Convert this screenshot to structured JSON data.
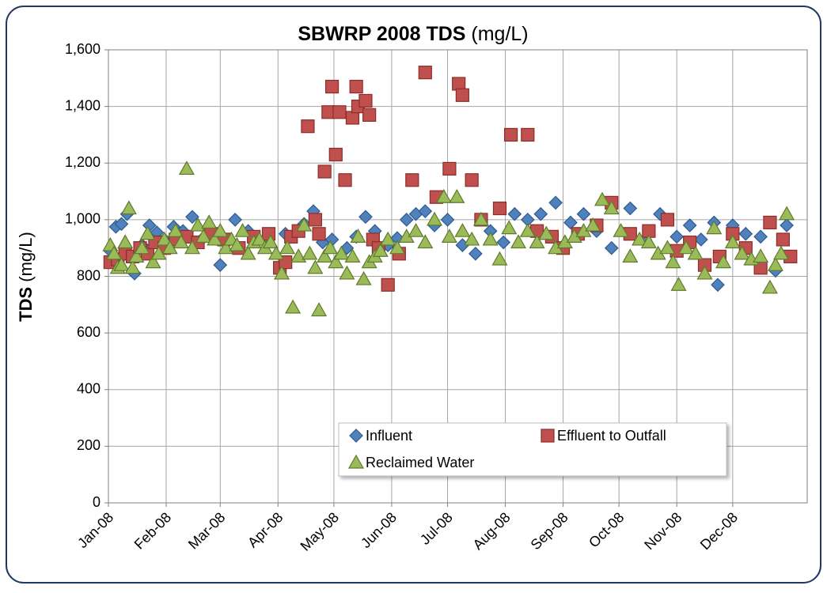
{
  "chart_data": {
    "type": "scatter",
    "title": "SBWRP 2008 TDS",
    "title_unit": "(mg/L)",
    "ylabel": "TDS",
    "ylabel_unit": "(mg/L)",
    "grid": true,
    "legend": "bottom",
    "xlim": [
      0,
      375
    ],
    "xticks": [
      {
        "value": 0,
        "label": "Jan-08"
      },
      {
        "value": 31,
        "label": "Feb-08"
      },
      {
        "value": 60,
        "label": "Mar-08"
      },
      {
        "value": 91,
        "label": "Apr-08"
      },
      {
        "value": 121,
        "label": "May-08"
      },
      {
        "value": 152,
        "label": "Jun-08"
      },
      {
        "value": 182,
        "label": "Jul-08"
      },
      {
        "value": 213,
        "label": "Aug-08"
      },
      {
        "value": 244,
        "label": "Sep-08"
      },
      {
        "value": 274,
        "label": "Oct-08"
      },
      {
        "value": 305,
        "label": "Nov-08"
      },
      {
        "value": 335,
        "label": "Dec-08"
      }
    ],
    "ylim": [
      0,
      1600
    ],
    "yticks": [
      0,
      200,
      400,
      600,
      800,
      {
        "value": 1000,
        "label": "1,000"
      },
      {
        "value": 1200,
        "label": "1,200"
      },
      {
        "value": 1400,
        "label": "1,400"
      },
      {
        "value": 1600,
        "label": "1,600"
      }
    ],
    "series": [
      {
        "name": "Influent",
        "color": "#4f81bd",
        "stroke": "#2c5a8f",
        "marker": "diamond",
        "x": [
          1,
          4,
          7,
          10,
          14,
          18,
          22,
          26,
          30,
          35,
          40,
          45,
          50,
          55,
          60,
          68,
          75,
          85,
          95,
          105,
          110,
          115,
          120,
          128,
          133,
          138,
          143,
          150,
          155,
          160,
          165,
          170,
          175,
          182,
          190,
          197,
          205,
          212,
          218,
          225,
          232,
          240,
          248,
          255,
          262,
          270,
          280,
          288,
          296,
          305,
          312,
          318,
          325,
          327,
          335,
          342,
          350,
          358,
          364
        ],
        "values": [
          890,
          975,
          985,
          1020,
          810,
          910,
          980,
          955,
          930,
          975,
          960,
          1010,
          930,
          960,
          840,
          1000,
          960,
          930,
          950,
          985,
          1030,
          920,
          930,
          900,
          940,
          1010,
          960,
          910,
          935,
          1000,
          1020,
          1030,
          980,
          1000,
          910,
          880,
          960,
          920,
          1020,
          1000,
          1020,
          1060,
          990,
          1020,
          960,
          900,
          1040,
          930,
          1020,
          940,
          980,
          930,
          990,
          770,
          980,
          950,
          940,
          820,
          980
        ]
      },
      {
        "name": "Effluent to Outfall",
        "color": "#c0504d",
        "stroke": "#8c2d2a",
        "marker": "square",
        "x": [
          1,
          5,
          9,
          13,
          17,
          21,
          25,
          30,
          36,
          42,
          48,
          55,
          62,
          70,
          78,
          86,
          92,
          95,
          98,
          102,
          107,
          111,
          113,
          116,
          118,
          120,
          122,
          124,
          127,
          131,
          133,
          134,
          138,
          140,
          142,
          145,
          150,
          156,
          163,
          170,
          176,
          183,
          188,
          190,
          195,
          200,
          210,
          216,
          225,
          230,
          238,
          244,
          252,
          262,
          270,
          280,
          290,
          300,
          305,
          312,
          320,
          328,
          335,
          342,
          350,
          355,
          362,
          366
        ],
        "values": [
          850,
          860,
          880,
          870,
          900,
          880,
          920,
          900,
          930,
          940,
          920,
          950,
          930,
          900,
          940,
          950,
          830,
          850,
          940,
          960,
          1330,
          1000,
          950,
          1170,
          1380,
          1470,
          1230,
          1380,
          1140,
          1360,
          1470,
          1400,
          1420,
          1370,
          930,
          900,
          770,
          880,
          1140,
          1520,
          1080,
          1180,
          1480,
          1440,
          1140,
          1000,
          1040,
          1300,
          1300,
          960,
          940,
          900,
          950,
          980,
          1060,
          950,
          960,
          1000,
          890,
          920,
          840,
          870,
          950,
          900,
          830,
          990,
          930,
          870
        ]
      },
      {
        "name": "Reclaimed Water",
        "color": "#9bbb59",
        "stroke": "#5f7a2c",
        "marker": "triangle",
        "x": [
          1,
          3,
          5,
          7,
          9,
          11,
          13,
          15,
          18,
          21,
          24,
          27,
          30,
          33,
          36,
          39,
          42,
          45,
          48,
          51,
          54,
          57,
          60,
          63,
          66,
          69,
          72,
          75,
          78,
          81,
          84,
          87,
          90,
          93,
          96,
          99,
          102,
          105,
          108,
          111,
          113,
          116,
          119,
          122,
          125,
          128,
          131,
          134,
          137,
          140,
          143,
          146,
          150,
          155,
          160,
          165,
          170,
          175,
          180,
          183,
          187,
          190,
          195,
          200,
          205,
          210,
          215,
          220,
          225,
          230,
          235,
          240,
          245,
          250,
          255,
          260,
          265,
          270,
          275,
          280,
          285,
          290,
          295,
          300,
          303,
          306,
          310,
          315,
          320,
          325,
          330,
          335,
          340,
          345,
          350,
          355,
          358,
          361,
          364
        ],
        "values": [
          910,
          880,
          830,
          840,
          920,
          1040,
          830,
          870,
          900,
          950,
          850,
          880,
          930,
          900,
          960,
          920,
          1180,
          900,
          980,
          940,
          990,
          930,
          960,
          900,
          930,
          910,
          960,
          880,
          920,
          930,
          900,
          920,
          880,
          810,
          900,
          690,
          870,
          980,
          880,
          830,
          680,
          870,
          900,
          850,
          880,
          810,
          870,
          940,
          790,
          850,
          870,
          890,
          930,
          900,
          940,
          960,
          920,
          1000,
          1080,
          940,
          1080,
          960,
          930,
          1000,
          930,
          860,
          970,
          920,
          960,
          920,
          950,
          900,
          920,
          940,
          960,
          980,
          1070,
          1040,
          960,
          870,
          930,
          920,
          880,
          900,
          850,
          770,
          900,
          880,
          810,
          970,
          850,
          920,
          880,
          860,
          870,
          760,
          840,
          880,
          1020
        ]
      }
    ]
  }
}
